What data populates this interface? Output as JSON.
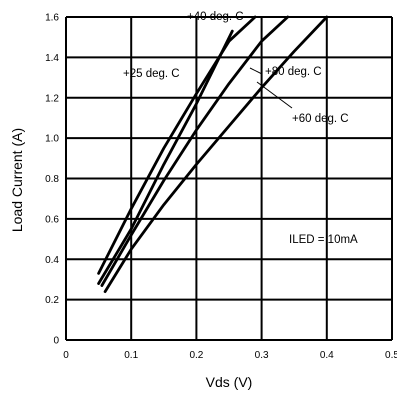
{
  "chart_data": {
    "type": "line",
    "xlabel": "Vds (V)",
    "ylabel": "Load Current (A)",
    "xlim": [
      0,
      0.5
    ],
    "ylim": [
      0,
      1.6
    ],
    "grid": true,
    "xticks": [
      "0",
      "0.1",
      "0.2",
      "0.3",
      "0.4",
      "0.5"
    ],
    "yticks": [
      "0",
      "0.2",
      "0.4",
      "0.6",
      "0.8",
      "1.0",
      "1.2",
      "1.4",
      "1.6"
    ],
    "series": [
      {
        "name": "+25 deg. C",
        "x": [
          0.05,
          0.1,
          0.15,
          0.2,
          0.25,
          0.29
        ],
        "y": [
          0.33,
          0.65,
          0.95,
          1.22,
          1.48,
          1.6
        ]
      },
      {
        "name": "+40 deg. C",
        "x": [
          0.05,
          0.1,
          0.15,
          0.2,
          0.255
        ],
        "y": [
          0.28,
          0.55,
          0.87,
          1.17,
          1.53
        ]
      },
      {
        "name": "+60 deg. C",
        "x": [
          0.055,
          0.1,
          0.15,
          0.2,
          0.25,
          0.3,
          0.34
        ],
        "y": [
          0.27,
          0.52,
          0.79,
          1.04,
          1.27,
          1.48,
          1.6
        ]
      },
      {
        "name": "+80 deg. C",
        "x": [
          0.06,
          0.1,
          0.15,
          0.2,
          0.25,
          0.3,
          0.35,
          0.4
        ],
        "y": [
          0.24,
          0.45,
          0.67,
          0.87,
          1.06,
          1.25,
          1.43,
          1.6
        ]
      }
    ],
    "annotations": [
      "+40 deg. C",
      "+25 deg. C",
      "+80 deg. C",
      "+60 deg. C",
      "ILED = 10mA"
    ]
  }
}
